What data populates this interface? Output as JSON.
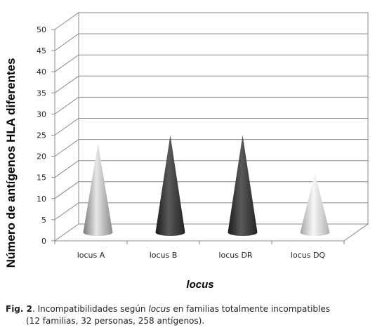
{
  "chart_data": {
    "type": "bar",
    "mark": "cone",
    "categories": [
      "locus A",
      "locus B",
      "locus DR",
      "locus DQ"
    ],
    "values": [
      23,
      25,
      25,
      16
    ],
    "ylabel": "Número de antígenos HLA diferentes",
    "xlabel": "locus",
    "ylim": [
      0,
      50
    ],
    "yticks": [
      0,
      5,
      10,
      15,
      20,
      25,
      30,
      35,
      40,
      45,
      50
    ],
    "grid": true,
    "legend": "none",
    "bar_colors": [
      "#b8b8b8",
      "#3a3a3a",
      "#3a3a3a",
      "#d8d8d8"
    ]
  },
  "caption": {
    "fig_label": "Fig. 2",
    "text_before": ". Incompatibilidades según ",
    "text_italic": "locus",
    "text_after": " en familias totalmente incompatibles",
    "line2": "(12 familias, 32 personas, 258 antígenos)."
  }
}
